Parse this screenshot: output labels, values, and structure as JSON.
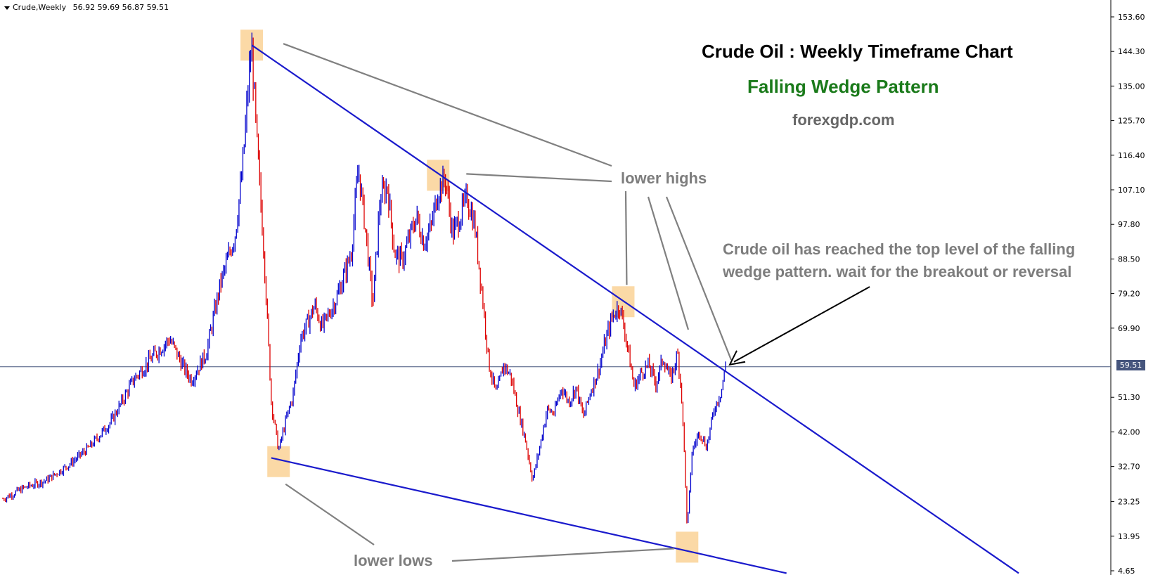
{
  "header": {
    "symbol": "Crude,Weekly",
    "ohlc": "56.92 59.69 56.87 59.51"
  },
  "titles": {
    "main": "Crude Oil : Weekly Timeframe Chart",
    "pattern": "Falling Wedge Pattern",
    "site": "forexgdp.com"
  },
  "annotations": {
    "lower_highs": "lower highs",
    "lower_lows": "lower lows",
    "note_line1": "Crude oil has reached the top level of the falling",
    "note_line2": "wedge pattern. wait for the breakout or reversal"
  },
  "current_price": "59.51",
  "colors": {
    "up_bar": "#0000cc",
    "down_bar": "#dd0000",
    "trendline": "#1a1acc",
    "highlight": "#fbd9a6",
    "pointer_lines": "#808080",
    "price_line": "#46557d"
  },
  "chart_data": {
    "type": "candlestick",
    "title": "Crude Oil : Weekly Timeframe Chart",
    "subtitle": "Falling Wedge Pattern",
    "y_ticks": [
      153.6,
      144.3,
      135.0,
      125.7,
      116.4,
      107.1,
      97.8,
      88.5,
      79.2,
      69.9,
      51.3,
      42.0,
      32.7,
      23.25,
      13.95,
      4.65
    ],
    "ylim": [
      4.65,
      153.6
    ],
    "last_close": 59.51,
    "approx_closes_over_time": [
      [
        0,
        24
      ],
      [
        3,
        27
      ],
      [
        6,
        29
      ],
      [
        9,
        33
      ],
      [
        12,
        38
      ],
      [
        15,
        45
      ],
      [
        18,
        56
      ],
      [
        21,
        63
      ],
      [
        23,
        67
      ],
      [
        25,
        59
      ],
      [
        26,
        56
      ],
      [
        28,
        63
      ],
      [
        30,
        82
      ],
      [
        32,
        95
      ],
      [
        33,
        112
      ],
      [
        34,
        140
      ],
      [
        34.3,
        145
      ],
      [
        35,
        120
      ],
      [
        36,
        90
      ],
      [
        37,
        50
      ],
      [
        38,
        37
      ],
      [
        39,
        45
      ],
      [
        40,
        52
      ],
      [
        41,
        67
      ],
      [
        43,
        76
      ],
      [
        44,
        70
      ],
      [
        46,
        78
      ],
      [
        48,
        90
      ],
      [
        49,
        113
      ],
      [
        50,
        96
      ],
      [
        51,
        76
      ],
      [
        52,
        105
      ],
      [
        53,
        108
      ],
      [
        54,
        90
      ],
      [
        55,
        88
      ],
      [
        56,
        94
      ],
      [
        57,
        100
      ],
      [
        58,
        93
      ],
      [
        59,
        97
      ],
      [
        60,
        107
      ],
      [
        61,
        110
      ],
      [
        62,
        95
      ],
      [
        63,
        100
      ],
      [
        64,
        105
      ],
      [
        65,
        98
      ],
      [
        66,
        80
      ],
      [
        67,
        60
      ],
      [
        68,
        52
      ],
      [
        69,
        60
      ],
      [
        70,
        57
      ],
      [
        71,
        48
      ],
      [
        72,
        40
      ],
      [
        73,
        29
      ],
      [
        74,
        38
      ],
      [
        75,
        48
      ],
      [
        76,
        47
      ],
      [
        77,
        54
      ],
      [
        78,
        50
      ],
      [
        79,
        54
      ],
      [
        80,
        46
      ],
      [
        81,
        53
      ],
      [
        82,
        58
      ],
      [
        83,
        66
      ],
      [
        84,
        73
      ],
      [
        85,
        76
      ],
      [
        86,
        66
      ],
      [
        87,
        54
      ],
      [
        88,
        58
      ],
      [
        89,
        60
      ],
      [
        90,
        55
      ],
      [
        91,
        62
      ],
      [
        92,
        56
      ],
      [
        93,
        63
      ],
      [
        93.5,
        53
      ],
      [
        94,
        33
      ],
      [
        94.3,
        15
      ],
      [
        94.7,
        28
      ],
      [
        95,
        37
      ],
      [
        96,
        42
      ],
      [
        97,
        38
      ],
      [
        98,
        48
      ],
      [
        99,
        53
      ],
      [
        99.6,
        59.51
      ]
    ],
    "x_range": [
      0,
      100
    ],
    "drawings": {
      "upper_trendline": [
        [
          34.3,
          146
        ],
        [
          100,
          60
        ],
        [
          140,
          4
        ]
      ],
      "lower_trendline": [
        [
          37,
          35
        ],
        [
          108,
          4
        ]
      ],
      "marked_highs": [
        [
          34.3,
          146
        ],
        [
          60,
          111
        ],
        [
          85.5,
          77
        ]
      ],
      "marked_lows": [
        [
          38,
          34
        ],
        [
          94.3,
          11
        ]
      ]
    }
  }
}
